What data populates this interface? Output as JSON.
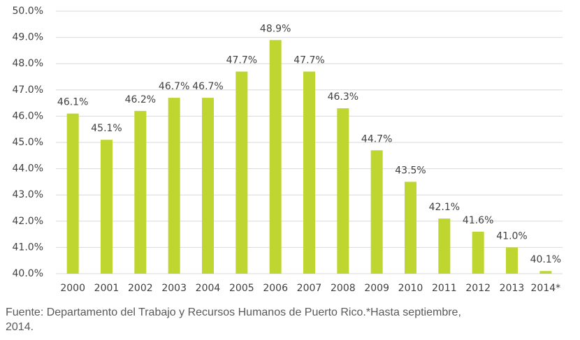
{
  "chart_data": {
    "type": "bar",
    "categories": [
      "2000",
      "2001",
      "2002",
      "2003",
      "2004",
      "2005",
      "2006",
      "2007",
      "2008",
      "2009",
      "2010",
      "2011",
      "2012",
      "2013",
      "2014*"
    ],
    "values": [
      46.1,
      45.1,
      46.2,
      46.7,
      46.7,
      47.7,
      48.9,
      47.7,
      46.3,
      44.7,
      43.5,
      42.1,
      41.6,
      41.0,
      40.1
    ],
    "value_labels": [
      "46.1%",
      "45.1%",
      "46.2%",
      "46.7%",
      "46.7%",
      "47.7%",
      "48.9%",
      "47.7%",
      "46.3%",
      "44.7%",
      "43.5%",
      "42.1%",
      "41.6%",
      "41.0%",
      "40.1%"
    ],
    "color": "#bfd530",
    "ylim": [
      40,
      50
    ],
    "yticks": [
      {
        "value": 40,
        "label": "40.0%"
      },
      {
        "value": 41,
        "label": "41.0%"
      },
      {
        "value": 42,
        "label": "42.0%"
      },
      {
        "value": 43,
        "label": "43.0%"
      },
      {
        "value": 44,
        "label": "44.0%"
      },
      {
        "value": 45,
        "label": "45.0%"
      },
      {
        "value": 46,
        "label": "46.0%"
      },
      {
        "value": 47,
        "label": "47.0%"
      },
      {
        "value": 48,
        "label": "48.0%"
      },
      {
        "value": 49,
        "label": "49.0%"
      },
      {
        "value": 50,
        "label": "50.0%"
      }
    ],
    "grid": true,
    "note": [
      "Fuente: Departamento del Trabajo y Recursos Humanos de Puerto Rico.*Hasta septiembre,",
      "2014."
    ]
  }
}
